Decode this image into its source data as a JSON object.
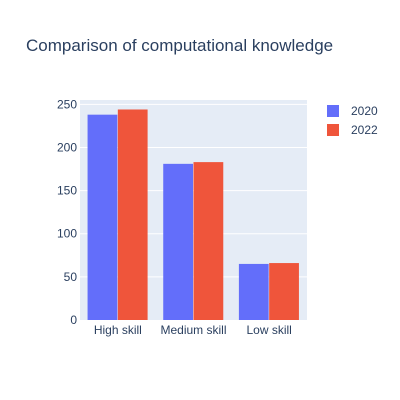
{
  "colors": {
    "plot_background": "#E5ECF6",
    "paper_background": "#FFFFFF",
    "grid": "#FFFFFF",
    "text": "#2a3f5f"
  },
  "chart_data": {
    "type": "bar",
    "barmode": "group",
    "title": "Comparison of computational knowledge",
    "xlabel": "",
    "ylabel": "",
    "categories": [
      "High skill",
      "Medium skill",
      "Low skill"
    ],
    "series": [
      {
        "name": "2020",
        "values": [
          238,
          181,
          65
        ],
        "color": "#636EFA"
      },
      {
        "name": "2022",
        "values": [
          244,
          183,
          66
        ],
        "color": "#EF553B"
      }
    ],
    "ylim": [
      0,
      255
    ],
    "yticks": [
      0,
      50,
      100,
      150,
      200,
      250
    ],
    "grid": true,
    "legend_position": "top-right"
  }
}
